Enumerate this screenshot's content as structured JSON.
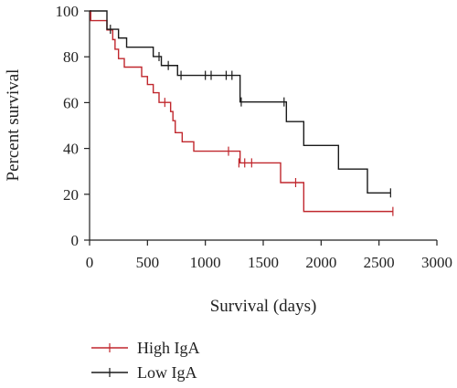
{
  "chart_data": {
    "type": "line",
    "subtype": "kaplan-meier step",
    "title": "",
    "xlabel": "Survival (days)",
    "ylabel": "Percent survival",
    "xlim": [
      0,
      3000
    ],
    "ylim": [
      0,
      100
    ],
    "x_ticks": [
      0,
      500,
      1000,
      1500,
      2000,
      2500,
      3000
    ],
    "y_ticks": [
      0,
      20,
      40,
      60,
      80,
      100
    ],
    "grid": false,
    "legend_position": "bottom-left",
    "series": [
      {
        "name": "High IgA",
        "color": "#c0272d",
        "steps": [
          [
            0,
            100
          ],
          [
            10,
            95.8
          ],
          [
            150,
            91.7
          ],
          [
            200,
            87.5
          ],
          [
            220,
            83.3
          ],
          [
            250,
            79.2
          ],
          [
            300,
            75.5
          ],
          [
            450,
            71.4
          ],
          [
            500,
            67.9
          ],
          [
            550,
            64.3
          ],
          [
            600,
            60.1
          ],
          [
            700,
            56.1
          ],
          [
            720,
            52.1
          ],
          [
            740,
            46.9
          ],
          [
            800,
            42.9
          ],
          [
            900,
            38.8
          ],
          [
            1300,
            33.7
          ],
          [
            1650,
            25.1
          ],
          [
            1850,
            12.5
          ],
          [
            2620,
            12.5
          ]
        ],
        "censored": [
          [
            650,
            60.1
          ],
          [
            1200,
            38.8
          ],
          [
            1290,
            33.7
          ],
          [
            1340,
            33.7
          ],
          [
            1400,
            33.7
          ],
          [
            1780,
            25.1
          ],
          [
            2620,
            12.5
          ]
        ]
      },
      {
        "name": "Low IgA",
        "color": "#1a1a1a",
        "steps": [
          [
            0,
            100
          ],
          [
            150,
            92
          ],
          [
            250,
            88.2
          ],
          [
            320,
            84.2
          ],
          [
            550,
            80.1
          ],
          [
            620,
            76.2
          ],
          [
            760,
            71.9
          ],
          [
            1300,
            60.3
          ],
          [
            1700,
            51.7
          ],
          [
            1850,
            41.3
          ],
          [
            2150,
            31
          ],
          [
            2400,
            20.6
          ],
          [
            2600,
            20.6
          ]
        ],
        "censored": [
          [
            180,
            92
          ],
          [
            600,
            80.1
          ],
          [
            680,
            76.2
          ],
          [
            790,
            71.9
          ],
          [
            1000,
            71.9
          ],
          [
            1050,
            71.9
          ],
          [
            1180,
            71.9
          ],
          [
            1230,
            71.9
          ],
          [
            1310,
            60.3
          ],
          [
            1680,
            60.3
          ],
          [
            2600,
            20.6
          ]
        ]
      }
    ]
  }
}
